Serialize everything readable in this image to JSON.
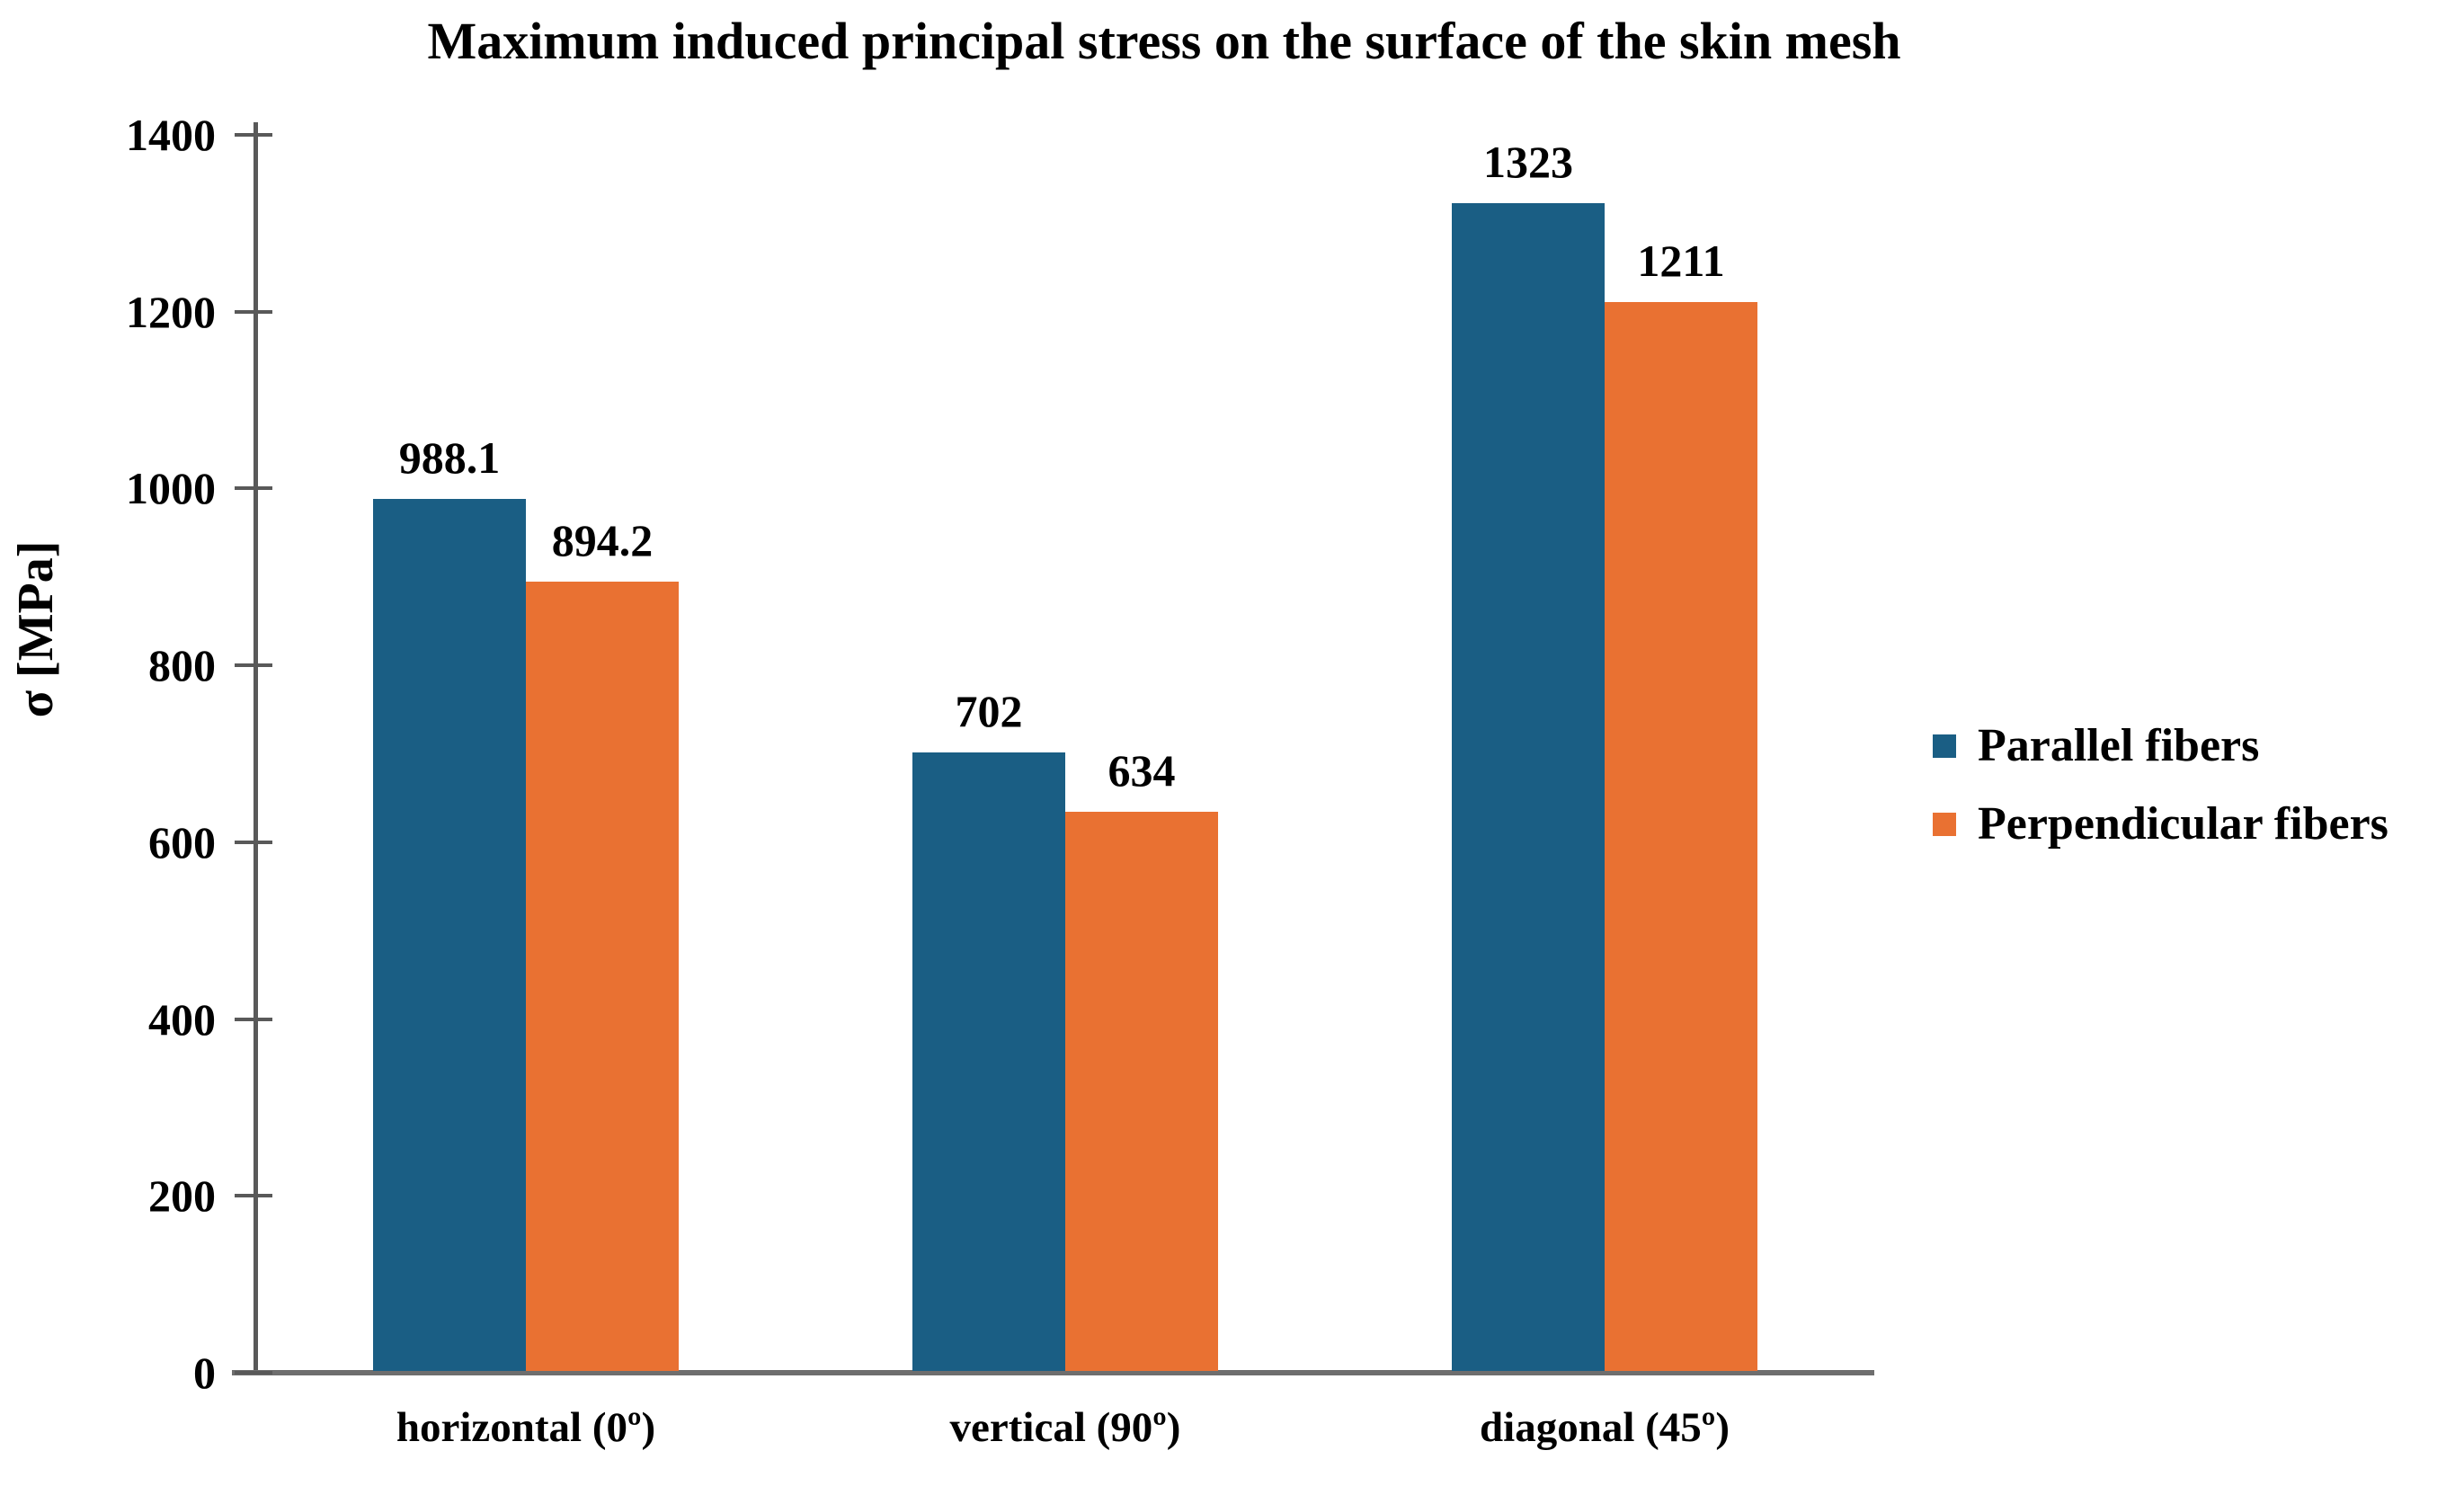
{
  "chart_data": {
    "type": "bar",
    "title": "Maximum induced principal stress on the surface of the skin mesh",
    "ylabel": "σ [MPa]",
    "xlabel": "",
    "categories": [
      "horizontal (0º)",
      "vertical (90º)",
      "diagonal (45º)"
    ],
    "series": [
      {
        "name": "Parallel fibers",
        "color": "#1A5E84",
        "values": [
          988.1,
          702,
          1323
        ],
        "value_labels": [
          "988.1",
          "702",
          "1323"
        ]
      },
      {
        "name": "Perpendicular fibers",
        "color": "#E97132",
        "values": [
          894.2,
          634,
          1211
        ],
        "value_labels": [
          "894.2",
          "634",
          "1211"
        ]
      }
    ],
    "ylim": [
      0,
      1400
    ],
    "yticks": [
      0,
      200,
      400,
      600,
      800,
      1000,
      1200,
      1400
    ],
    "grid": false,
    "legend_position": "right",
    "axis_color": "#595959",
    "text_color": "#000000"
  }
}
